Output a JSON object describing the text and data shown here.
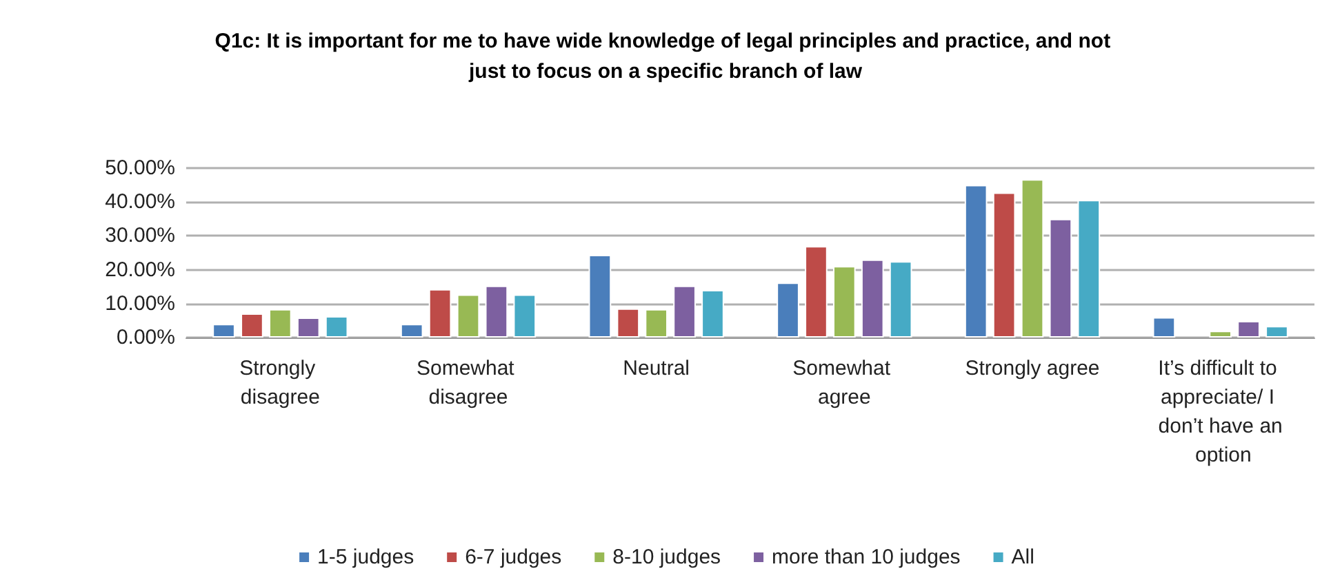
{
  "chart_data": {
    "type": "bar",
    "title": "Q1c: It is important for me to have wide knowledge of legal principles and practice, and not just to focus on a specific branch of law",
    "categories": [
      "Strongly disagree",
      "Somewhat disagree",
      "Neutral",
      "Somewhat agree",
      "Strongly agree",
      "It’s difficult to appreciate/ I don’t have an option"
    ],
    "series": [
      {
        "name": "1-5 judges",
        "color": "#4a7ebb",
        "values": [
          4.0,
          4.0,
          24.4,
          16.2,
          45.0,
          6.0
        ]
      },
      {
        "name": "6-7 judges",
        "color": "#be4b48",
        "values": [
          7.1,
          14.3,
          8.6,
          27.0,
          42.8,
          null
        ]
      },
      {
        "name": "8-10 judges",
        "color": "#98b954",
        "values": [
          8.4,
          12.7,
          8.4,
          21.1,
          46.7,
          2.0
        ]
      },
      {
        "name": "more than 10 judges",
        "color": "#7d60a0",
        "values": [
          5.9,
          15.3,
          15.3,
          23.0,
          35.0,
          4.9
        ]
      },
      {
        "name": "All",
        "color": "#46aac5",
        "values": [
          6.3,
          12.7,
          14.0,
          22.5,
          40.6,
          3.4
        ]
      }
    ],
    "ylim": [
      0,
      50
    ],
    "yticks": [
      {
        "value": 0,
        "label": "0.00%"
      },
      {
        "value": 10,
        "label": "10.00%"
      },
      {
        "value": 20,
        "label": "20.00%"
      },
      {
        "value": 30,
        "label": "30.00%"
      },
      {
        "value": 40,
        "label": "40.00%"
      },
      {
        "value": 50,
        "label": "50.00%"
      }
    ],
    "grid": "y",
    "legend": "bottom"
  }
}
